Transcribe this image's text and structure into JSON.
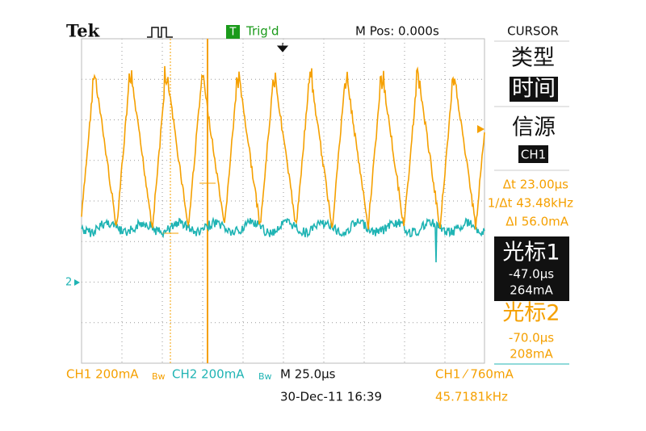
{
  "header": {
    "brand": "Tek",
    "trigger_icon": "T",
    "trigger_status": "Trig'd",
    "position": "M Pos: 0.000s"
  },
  "menu": {
    "title": "CURSOR",
    "type_label": "类型",
    "type_value": "时间",
    "source_label": "信源",
    "source_value": "CH1",
    "delta_t": "Δt 23.00μs",
    "inv_delta_t": "1/Δt 43.48kHz",
    "delta_i": "ΔI 56.0mA",
    "cursor1": {
      "label": "光标1",
      "time": "-47.0μs",
      "value": "264mA"
    },
    "cursor2": {
      "label": "光标2",
      "time": "-70.0μs",
      "value": "208mA"
    }
  },
  "markers": {
    "ch2": "2"
  },
  "footer": {
    "ch1_scale": "CH1 200mA",
    "ch1_bw": "Bw",
    "ch2_scale": "CH2 200mA",
    "ch2_bw": "Bw",
    "timebase": "M 25.0μs",
    "trigger": "CH1 ⁄ 760mA",
    "date": "30-Dec-11 16:39",
    "frequency": "45.7181kHz"
  }
}
